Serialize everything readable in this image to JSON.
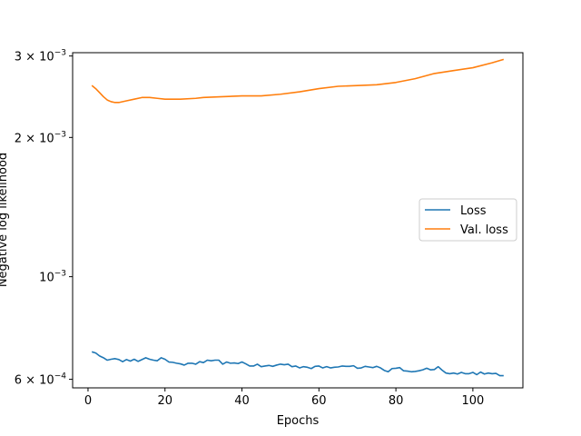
{
  "chart_data": {
    "type": "line",
    "xlabel": "Epochs",
    "ylabel": "Negative log likelihood",
    "yscale": "log",
    "xlim": [
      -4,
      113
    ],
    "ylim": [
      0.000575,
      0.00305
    ],
    "xticks": [
      0,
      20,
      40,
      60,
      80,
      100
    ],
    "yticks": [
      {
        "value": 0.0006,
        "base": "6 × 10",
        "exp": "−4"
      },
      {
        "value": 0.001,
        "base": "10",
        "exp": "−3"
      },
      {
        "value": 0.002,
        "base": "2 × 10",
        "exp": "−3"
      },
      {
        "value": 0.003,
        "base": "3 × 10",
        "exp": "−3"
      }
    ],
    "legend_position": "center-right",
    "colors": {
      "Loss": "#1f77b4",
      "Val. loss": "#ff7f0e"
    },
    "series": [
      {
        "name": "Loss",
        "color": "#1f77b4",
        "x": [
          1,
          2,
          3,
          4,
          5,
          6,
          7,
          8,
          9,
          10,
          11,
          12,
          13,
          14,
          15,
          16,
          17,
          18,
          19,
          20,
          21,
          22,
          23,
          24,
          25,
          26,
          27,
          28,
          29,
          30,
          31,
          32,
          33,
          34,
          35,
          36,
          37,
          38,
          39,
          40,
          41,
          42,
          43,
          44,
          45,
          46,
          47,
          48,
          49,
          50,
          51,
          52,
          53,
          54,
          55,
          56,
          57,
          58,
          59,
          60,
          61,
          62,
          63,
          64,
          65,
          66,
          67,
          68,
          69,
          70,
          71,
          72,
          73,
          74,
          75,
          76,
          77,
          78,
          79,
          80,
          81,
          82,
          83,
          84,
          85,
          86,
          87,
          88,
          89,
          90,
          91,
          92,
          93,
          94,
          95,
          96,
          97,
          98,
          99,
          100,
          101,
          102,
          103,
          104,
          105,
          106,
          107,
          108
        ],
        "values": [
          0.000688,
          0.000684,
          0.000674,
          0.000668,
          0.00066,
          0.000663,
          0.000665,
          0.000662,
          0.000655,
          0.000662,
          0.000657,
          0.000663,
          0.000656,
          0.000662,
          0.000668,
          0.000663,
          0.00066,
          0.000658,
          0.000668,
          0.000663,
          0.000654,
          0.000653,
          0.00065,
          0.000648,
          0.000644,
          0.00065,
          0.00065,
          0.000647,
          0.000655,
          0.000652,
          0.00066,
          0.000658,
          0.00066,
          0.00066,
          0.000647,
          0.000654,
          0.00065,
          0.000651,
          0.000649,
          0.000654,
          0.000648,
          0.000641,
          0.000641,
          0.000647,
          0.000639,
          0.000641,
          0.000643,
          0.00064,
          0.000644,
          0.000647,
          0.000645,
          0.000647,
          0.000639,
          0.000641,
          0.000635,
          0.000639,
          0.000637,
          0.000633,
          0.00064,
          0.000641,
          0.000635,
          0.000639,
          0.000635,
          0.000637,
          0.000638,
          0.000641,
          0.00064,
          0.00064,
          0.000642,
          0.000634,
          0.000635,
          0.00064,
          0.000638,
          0.000636,
          0.00064,
          0.000635,
          0.000627,
          0.000623,
          0.000633,
          0.000634,
          0.000636,
          0.000626,
          0.000625,
          0.000623,
          0.000624,
          0.000626,
          0.000629,
          0.000634,
          0.000629,
          0.00063,
          0.000639,
          0.000628,
          0.000619,
          0.000617,
          0.000619,
          0.000616,
          0.000621,
          0.000617,
          0.000617,
          0.000621,
          0.000614,
          0.000622,
          0.000616,
          0.000619,
          0.000617,
          0.000618,
          0.000611,
          0.000611
        ]
      },
      {
        "name": "Val. loss",
        "color": "#ff7f0e",
        "x": [
          1,
          2,
          3,
          4,
          5,
          6,
          7,
          8,
          10,
          12,
          14,
          16,
          18,
          20,
          24,
          28,
          30,
          35,
          40,
          45,
          50,
          55,
          60,
          65,
          70,
          75,
          80,
          85,
          90,
          95,
          100,
          105,
          108
        ],
        "values": [
          0.00259,
          0.00255,
          0.0025,
          0.00245,
          0.00241,
          0.00239,
          0.00238,
          0.00238,
          0.0024,
          0.00242,
          0.00244,
          0.00244,
          0.00243,
          0.00242,
          0.00242,
          0.00243,
          0.00244,
          0.00245,
          0.00246,
          0.00246,
          0.00248,
          0.00251,
          0.00255,
          0.00258,
          0.00259,
          0.0026,
          0.00263,
          0.00268,
          0.00275,
          0.00279,
          0.00283,
          0.0029,
          0.00295
        ]
      }
    ]
  }
}
